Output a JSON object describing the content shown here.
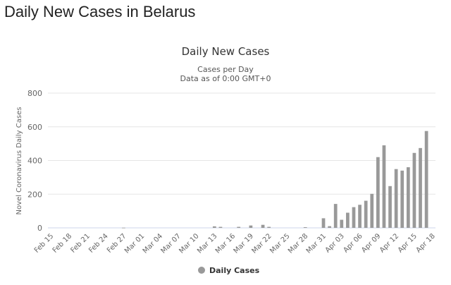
{
  "page": {
    "heading": "Daily New Cases in Belarus"
  },
  "chart_data": {
    "type": "bar",
    "title": "Daily New Cases",
    "subtitle_line1": "Cases per Day",
    "subtitle_line2": "Data as of 0:00 GMT+0",
    "ylabel": "Novel Coronavirus Daily Cases",
    "xlabel": "",
    "ylim": [
      0,
      800
    ],
    "yticks": [
      0,
      200,
      400,
      600,
      800
    ],
    "grid": true,
    "legend_position": "bottom-center",
    "bar_color": "#999999",
    "categories": [
      "Feb 15",
      "Feb 16",
      "Feb 17",
      "Feb 18",
      "Feb 19",
      "Feb 20",
      "Feb 21",
      "Feb 22",
      "Feb 23",
      "Feb 24",
      "Feb 25",
      "Feb 26",
      "Feb 27",
      "Feb 28",
      "Feb 29",
      "Mar 01",
      "Mar 02",
      "Mar 03",
      "Mar 04",
      "Mar 05",
      "Mar 06",
      "Mar 07",
      "Mar 08",
      "Mar 09",
      "Mar 10",
      "Mar 11",
      "Mar 12",
      "Mar 13",
      "Mar 14",
      "Mar 15",
      "Mar 16",
      "Mar 17",
      "Mar 18",
      "Mar 19",
      "Mar 20",
      "Mar 21",
      "Mar 22",
      "Mar 23",
      "Mar 24",
      "Mar 25",
      "Mar 26",
      "Mar 27",
      "Mar 28",
      "Mar 29",
      "Mar 30",
      "Mar 31",
      "Apr 01",
      "Apr 02",
      "Apr 03",
      "Apr 04",
      "Apr 05",
      "Apr 06",
      "Apr 07",
      "Apr 08",
      "Apr 09",
      "Apr 10",
      "Apr 11",
      "Apr 12",
      "Apr 13",
      "Apr 14",
      "Apr 15",
      "Apr 16",
      "Apr 17",
      "Apr 18"
    ],
    "tick_labels": [
      "Feb 15",
      "Feb 18",
      "Feb 21",
      "Feb 24",
      "Feb 27",
      "Mar 01",
      "Mar 04",
      "Mar 07",
      "Mar 10",
      "Mar 13",
      "Mar 16",
      "Mar 19",
      "Mar 22",
      "Mar 25",
      "Mar 28",
      "Mar 31",
      "Apr 03",
      "Apr 06",
      "Apr 09",
      "Apr 12",
      "Apr 15",
      "Apr 18"
    ],
    "series": [
      {
        "name": "Daily Cases",
        "values": [
          0,
          0,
          0,
          0,
          0,
          0,
          0,
          0,
          0,
          0,
          0,
          0,
          1,
          0,
          0,
          0,
          0,
          0,
          0,
          0,
          0,
          0,
          0,
          0,
          0,
          0,
          0,
          9,
          6,
          0,
          0,
          6,
          0,
          14,
          0,
          18,
          6,
          0,
          0,
          0,
          0,
          0,
          4,
          0,
          0,
          57,
          10,
          142,
          48,
          90,
          123,
          137,
          161,
          202,
          420,
          490,
          248,
          349,
          340,
          360,
          445,
          474,
          575,
          0
        ]
      }
    ]
  }
}
